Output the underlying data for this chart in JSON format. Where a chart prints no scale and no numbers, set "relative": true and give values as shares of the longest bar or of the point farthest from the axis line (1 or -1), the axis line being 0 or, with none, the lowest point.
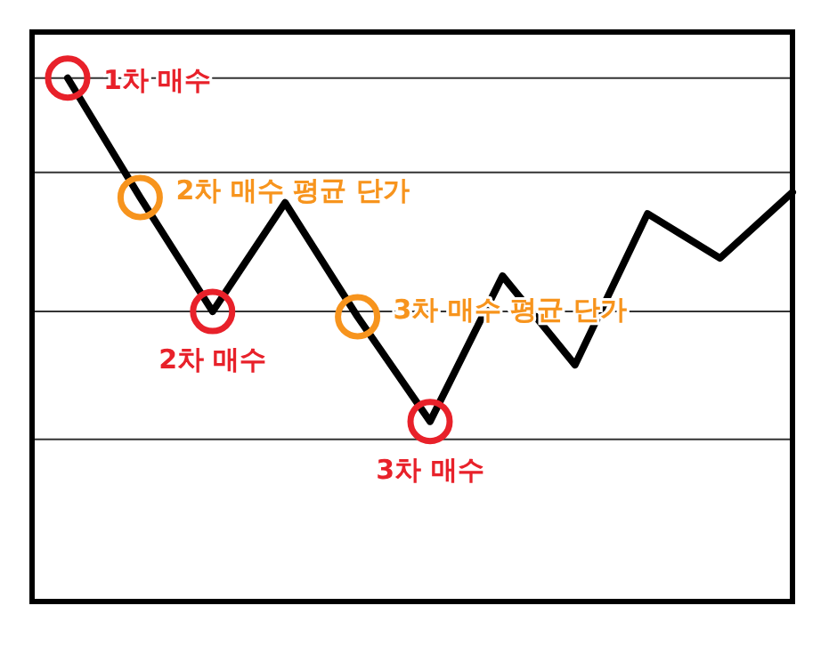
{
  "chart_data": {
    "type": "line",
    "relative": true,
    "categories": [
      null,
      null,
      null,
      null,
      null,
      null,
      null,
      null,
      null,
      null,
      null
    ],
    "series": [
      {
        "color": "#000000",
        "values": [
          1.0,
          0.772,
          0.554,
          0.762,
          0.544,
          0.344,
          0.622,
          0.452,
          0.741,
          0.656,
          0.782
        ]
      }
    ],
    "annotations": [
      {
        "text": "1차 매수",
        "y": 1.0
      },
      {
        "text": "2차 매수 평균 단가",
        "y": 0.772
      },
      {
        "text": "2차 매수",
        "y": 0.554
      },
      {
        "text": "3차 매수 평균 단가",
        "y": 0.544
      },
      {
        "text": "3차 매수",
        "y": 0.344
      }
    ],
    "ref_lines": [
      {
        "axis": "y",
        "value": 1.0,
        "color": "#333333"
      },
      {
        "axis": "y",
        "value": 0.82,
        "color": "#333333"
      },
      {
        "axis": "y",
        "value": 0.554,
        "color": "#333333"
      },
      {
        "axis": "y",
        "value": 0.31,
        "color": "#333333"
      }
    ],
    "grid": false
  }
}
